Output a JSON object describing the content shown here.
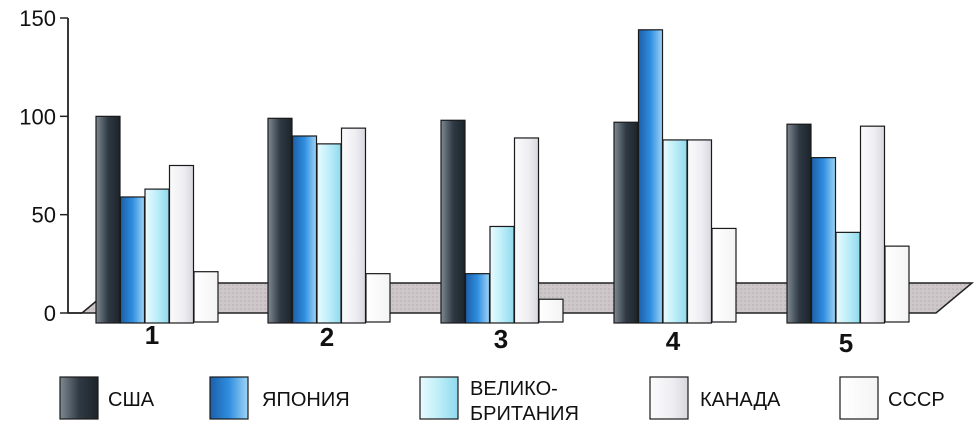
{
  "chart_data": {
    "type": "bar",
    "categories": [
      "1",
      "2",
      "3",
      "4",
      "5"
    ],
    "yticks": [
      "0",
      "50",
      "100",
      "150"
    ],
    "ylim": [
      0,
      150
    ],
    "grid": false,
    "legend_position": "bottom",
    "series": [
      {
        "name": "США",
        "values": [
          100,
          99,
          98,
          97,
          96
        ],
        "color": "#2f3a44"
      },
      {
        "name": "ЯПОНИЯ",
        "values": [
          59,
          90,
          20,
          144,
          79
        ],
        "color": "#2f86d6"
      },
      {
        "name": "ВЕЛИКО-\nБРИТАНИЯ",
        "name_lines": [
          "ВЕЛИКО-",
          "БРИТАНИЯ"
        ],
        "values": [
          63,
          86,
          44,
          88,
          41
        ],
        "color": "#b8ecf7"
      },
      {
        "name": "КАНАДА",
        "values": [
          75,
          94,
          89,
          88,
          95
        ],
        "color": "#f2f2f4"
      },
      {
        "name": "СССР",
        "values": [
          21,
          20,
          7,
          43,
          34
        ],
        "color": "#ffffff"
      }
    ]
  }
}
